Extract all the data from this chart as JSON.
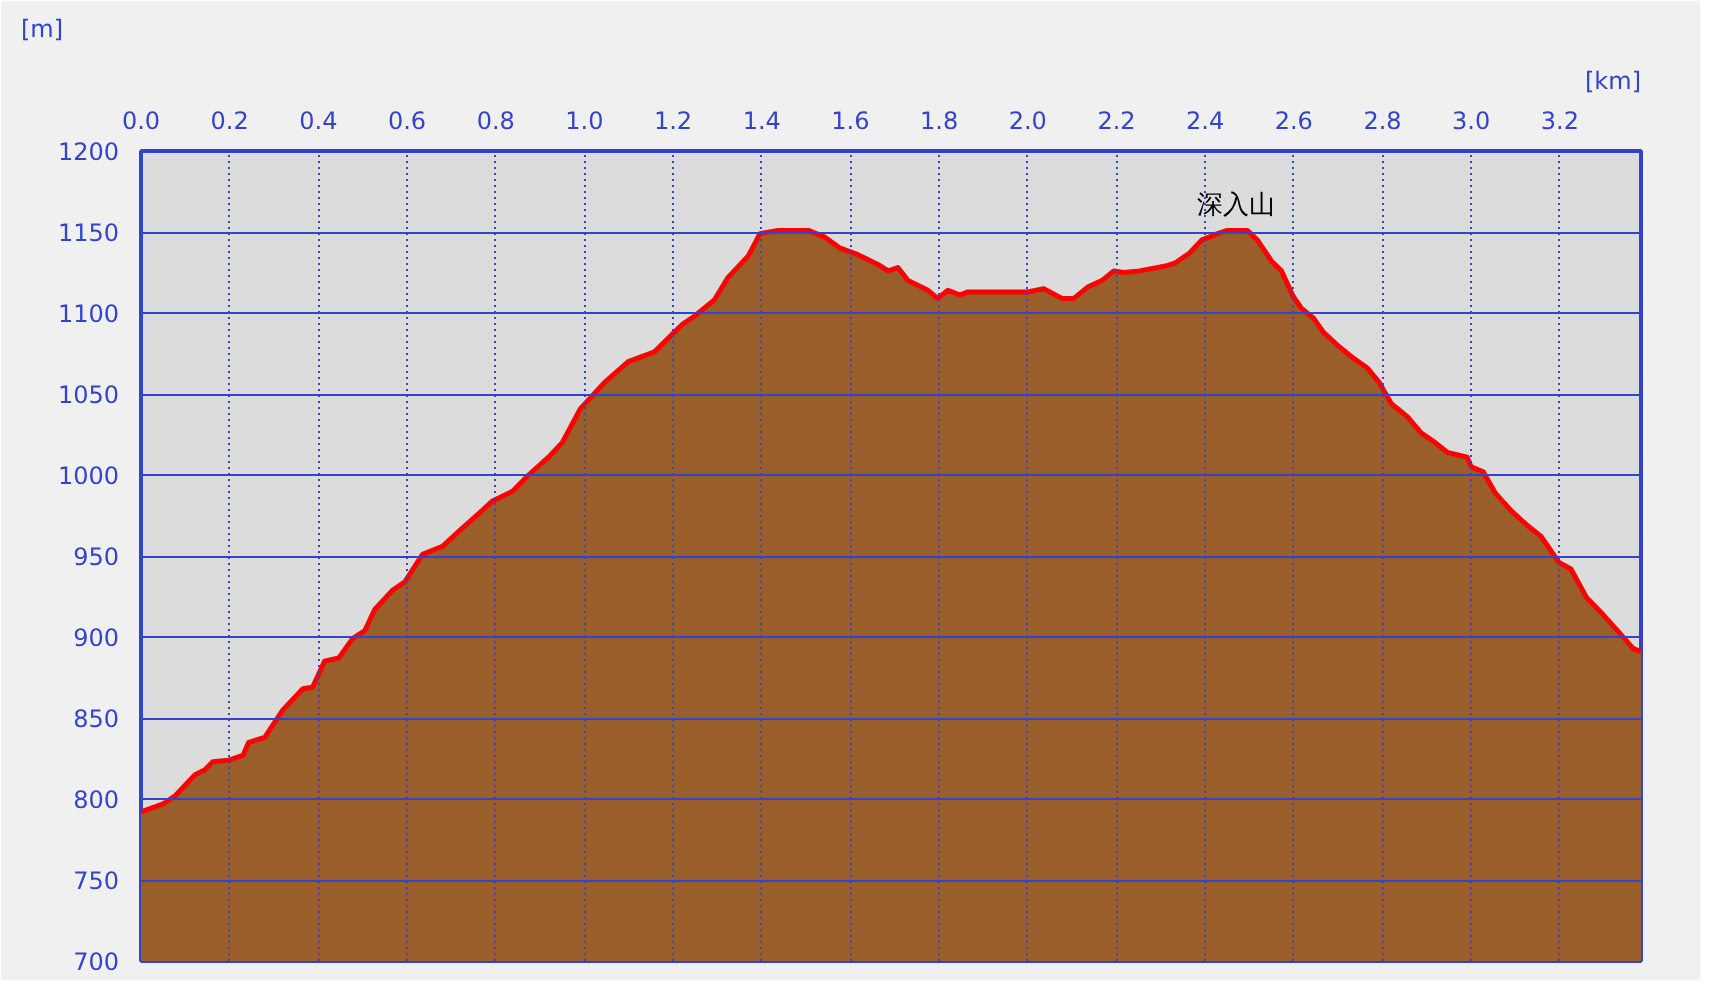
{
  "chart_data": {
    "type": "area",
    "xlabel": "[km]",
    "ylabel": "[m]",
    "x": [
      0.0,
      0.05,
      0.077,
      0.122,
      0.144,
      0.162,
      0.198,
      0.23,
      0.243,
      0.279,
      0.32,
      0.365,
      0.387,
      0.414,
      0.446,
      0.477,
      0.505,
      0.527,
      0.568,
      0.595,
      0.635,
      0.68,
      0.716,
      0.761,
      0.793,
      0.838,
      0.874,
      0.919,
      0.95,
      0.991,
      1.045,
      1.099,
      1.158,
      1.221,
      1.248,
      1.293,
      1.324,
      1.369,
      1.396,
      1.437,
      1.505,
      1.541,
      1.577,
      1.617,
      1.662,
      1.685,
      1.707,
      1.73,
      1.775,
      1.797,
      1.82,
      1.847,
      1.865,
      2.0,
      2.036,
      2.077,
      2.104,
      2.135,
      2.167,
      2.194,
      2.216,
      2.252,
      2.311,
      2.333,
      2.365,
      2.392,
      2.428,
      2.45,
      2.495,
      2.518,
      2.55,
      2.572,
      2.599,
      2.617,
      2.644,
      2.667,
      2.703,
      2.73,
      2.766,
      2.793,
      2.82,
      2.856,
      2.887,
      2.914,
      2.946,
      2.991,
      3.0,
      3.027,
      3.054,
      3.09,
      3.126,
      3.158,
      3.198,
      3.225,
      3.261,
      3.297,
      3.333,
      3.365,
      3.383
    ],
    "series": [
      {
        "color": "#ff0000",
        "values": [
          792,
          797,
          802,
          815,
          818,
          823,
          824,
          827,
          835,
          838,
          855,
          868,
          869,
          885,
          887,
          899,
          904,
          917,
          929,
          934,
          951,
          956,
          965,
          976,
          984,
          990,
          1000,
          1011,
          1020,
          1041,
          1057,
          1070,
          1076,
          1093,
          1098,
          1108,
          1122,
          1135,
          1149,
          1151,
          1151,
          1147,
          1140,
          1136,
          1130,
          1126,
          1128,
          1120,
          1114,
          1109,
          1114,
          1111,
          1113,
          1113,
          1115,
          1109,
          1109,
          1116,
          1120,
          1126,
          1125,
          1126,
          1129,
          1131,
          1137,
          1145,
          1149,
          1151,
          1151,
          1145,
          1132,
          1126,
          1110,
          1103,
          1097,
          1088,
          1079,
          1073,
          1066,
          1057,
          1044,
          1036,
          1026,
          1021,
          1014,
          1011,
          1005,
          1002,
          989,
          978,
          969,
          962,
          946,
          942,
          924,
          914,
          903,
          893,
          891
        ]
      }
    ],
    "xlim": [
      0.0,
      3.383
    ],
    "ylim": [
      700,
      1200
    ],
    "xticks": [
      {
        "value": 0.0,
        "label": "0.0"
      },
      0.2,
      0.4,
      0.6,
      0.8,
      {
        "value": 1.0,
        "label": "1.0"
      },
      1.2,
      1.4,
      1.6,
      1.8,
      {
        "value": 2.0,
        "label": "2.0"
      },
      2.2,
      2.4,
      2.6,
      2.8,
      {
        "value": 3.0,
        "label": "3.0"
      },
      3.2
    ],
    "yticks": [
      700,
      750,
      800,
      850,
      900,
      950,
      1000,
      1050,
      1100,
      1150,
      1200
    ],
    "grid": true,
    "annotations": [
      {
        "text": "深入山",
        "x": 2.47,
        "y": 1152
      }
    ]
  }
}
